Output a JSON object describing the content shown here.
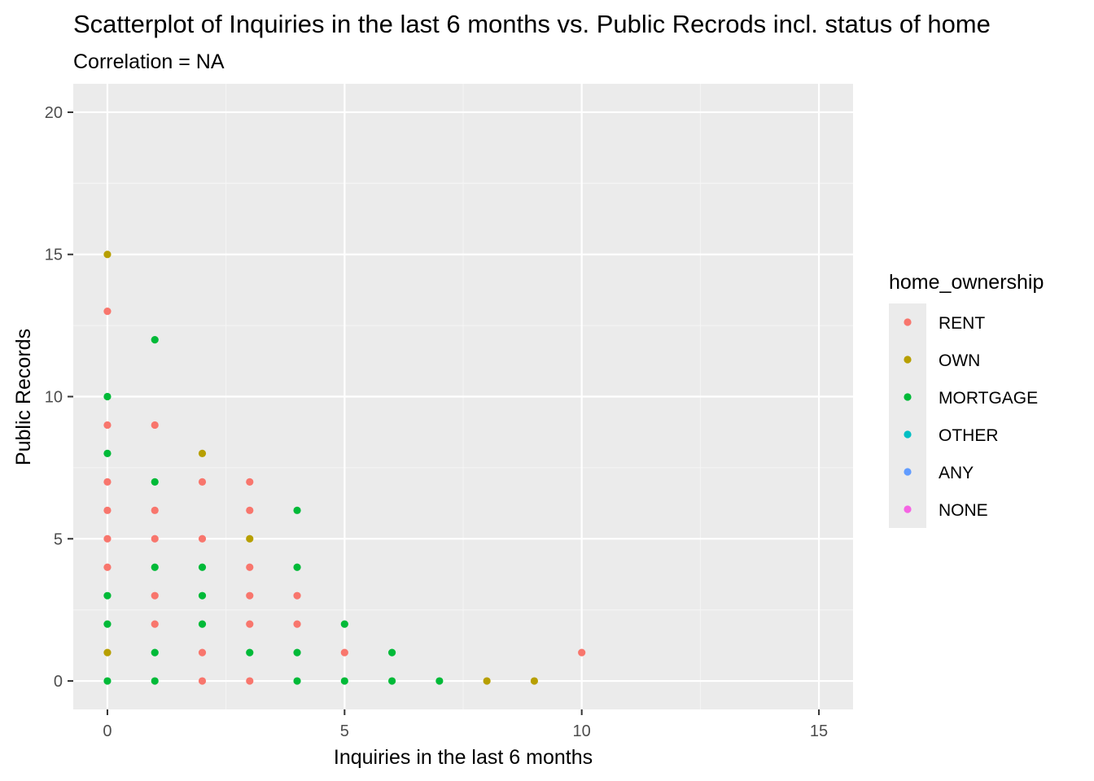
{
  "chart_data": {
    "type": "scatter",
    "title": "Scatterplot of Inquiries in the last 6 months vs. Public Recrods incl. status of home",
    "subtitle": "Correlation = NA",
    "xlabel": "Inquiries in the last 6 months",
    "ylabel": "Public Records",
    "xlim": [
      -0.72,
      15.72
    ],
    "ylim": [
      -1,
      21
    ],
    "x_ticks": [
      0,
      5,
      10,
      15
    ],
    "y_ticks": [
      0,
      5,
      10,
      15,
      20
    ],
    "x_tick_labels": [
      "0",
      "5",
      "10",
      "15"
    ],
    "y_tick_labels": [
      "0",
      "5",
      "10",
      "15",
      "20"
    ],
    "grid": true,
    "legend": {
      "title": "home_ownership",
      "position": "right",
      "entries": [
        {
          "label": "RENT",
          "color": "#F8766D"
        },
        {
          "label": "OWN",
          "color": "#B79F00"
        },
        {
          "label": "MORTGAGE",
          "color": "#00BA38"
        },
        {
          "label": "OTHER",
          "color": "#00BFC4"
        },
        {
          "label": "ANY",
          "color": "#619CFF"
        },
        {
          "label": "NONE",
          "color": "#F564E3"
        }
      ]
    },
    "series": [
      {
        "name": "RENT",
        "color": "#F8766D",
        "points": [
          [
            0,
            13
          ],
          [
            0,
            9
          ],
          [
            0,
            7
          ],
          [
            0,
            6
          ],
          [
            0,
            5
          ],
          [
            0,
            4
          ],
          [
            1,
            9
          ],
          [
            1,
            6
          ],
          [
            1,
            5
          ],
          [
            1,
            3
          ],
          [
            1,
            2
          ],
          [
            2,
            7
          ],
          [
            2,
            5
          ],
          [
            2,
            1
          ],
          [
            2,
            0
          ],
          [
            3,
            7
          ],
          [
            3,
            6
          ],
          [
            3,
            4
          ],
          [
            3,
            3
          ],
          [
            3,
            2
          ],
          [
            3,
            0
          ],
          [
            4,
            3
          ],
          [
            4,
            2
          ],
          [
            5,
            1
          ],
          [
            10,
            1
          ]
        ]
      },
      {
        "name": "OWN",
        "color": "#B79F00",
        "points": [
          [
            0,
            15
          ],
          [
            0,
            1
          ],
          [
            2,
            8
          ],
          [
            3,
            5
          ],
          [
            8,
            0
          ],
          [
            9,
            0
          ]
        ]
      },
      {
        "name": "MORTGAGE",
        "color": "#00BA38",
        "points": [
          [
            0,
            10
          ],
          [
            0,
            8
          ],
          [
            0,
            3
          ],
          [
            0,
            2
          ],
          [
            0,
            0
          ],
          [
            1,
            12
          ],
          [
            1,
            7
          ],
          [
            1,
            4
          ],
          [
            1,
            1
          ],
          [
            1,
            0
          ],
          [
            2,
            4
          ],
          [
            2,
            3
          ],
          [
            2,
            2
          ],
          [
            3,
            1
          ],
          [
            4,
            6
          ],
          [
            4,
            4
          ],
          [
            4,
            1
          ],
          [
            4,
            0
          ],
          [
            5,
            2
          ],
          [
            5,
            0
          ],
          [
            6,
            1
          ],
          [
            6,
            0
          ],
          [
            7,
            0
          ]
        ]
      },
      {
        "name": "OTHER",
        "color": "#00BFC4",
        "points": []
      },
      {
        "name": "ANY",
        "color": "#619CFF",
        "points": []
      },
      {
        "name": "NONE",
        "color": "#F564E3",
        "points": []
      }
    ]
  },
  "colors": {
    "panel_background": "#EBEBEB",
    "grid_major": "#FFFFFF",
    "grid_minor": "#F5F5F5",
    "tick": "#333333",
    "legend_key_background": "#EBEBEB"
  }
}
